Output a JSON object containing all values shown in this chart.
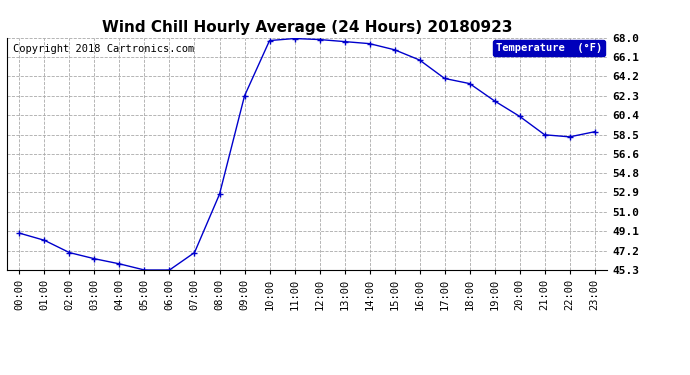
{
  "title": "Wind Chill Hourly Average (24 Hours) 20180923",
  "copyright": "Copyright 2018 Cartronics.com",
  "legend_label": "Temperature  (°F)",
  "hours": [
    "00:00",
    "01:00",
    "02:00",
    "03:00",
    "04:00",
    "05:00",
    "06:00",
    "07:00",
    "08:00",
    "09:00",
    "10:00",
    "11:00",
    "12:00",
    "13:00",
    "14:00",
    "15:00",
    "16:00",
    "17:00",
    "18:00",
    "19:00",
    "20:00",
    "21:00",
    "22:00",
    "23:00"
  ],
  "values": [
    48.9,
    48.2,
    47.0,
    46.4,
    45.9,
    45.3,
    45.3,
    47.0,
    52.7,
    62.3,
    67.7,
    67.9,
    67.8,
    67.6,
    67.4,
    66.8,
    65.8,
    64.0,
    63.5,
    61.8,
    60.3,
    58.5,
    58.3,
    58.8
  ],
  "ylim": [
    45.3,
    68.0
  ],
  "yticks": [
    45.3,
    47.2,
    49.1,
    51.0,
    52.9,
    54.8,
    56.6,
    58.5,
    60.4,
    62.3,
    64.2,
    66.1,
    68.0
  ],
  "line_color": "#0000cc",
  "marker_color": "#000066",
  "bg_color": "#ffffff",
  "plot_bg_color": "#ffffff",
  "grid_color": "#aaaaaa",
  "title_color": "#000000",
  "copyright_color": "#000000",
  "legend_bg": "#0000bb",
  "legend_text_color": "#ffffff",
  "title_fontsize": 11,
  "tick_fontsize": 7.5,
  "copyright_fontsize": 7.5,
  "ytick_fontsize": 8
}
